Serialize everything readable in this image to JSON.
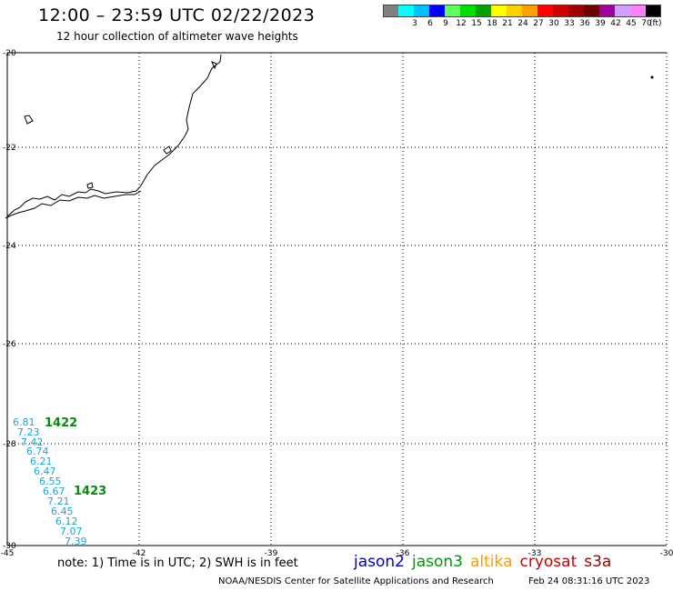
{
  "header": {
    "title": "12:00 – 23:59 UTC 02/22/2023",
    "subtitle": "12 hour collection of altimeter wave heights"
  },
  "legend": {
    "unit": "(ft)",
    "bins": [
      {
        "label": "",
        "color": "#808080"
      },
      {
        "label": "3",
        "color": "#00ffff"
      },
      {
        "label": "6",
        "color": "#00c0ff"
      },
      {
        "label": "9",
        "color": "#0000ff"
      },
      {
        "label": "12",
        "color": "#60ff60"
      },
      {
        "label": "15",
        "color": "#00e000"
      },
      {
        "label": "18",
        "color": "#00a000"
      },
      {
        "label": "21",
        "color": "#ffff00"
      },
      {
        "label": "24",
        "color": "#ffd000"
      },
      {
        "label": "27",
        "color": "#ffa000"
      },
      {
        "label": "30",
        "color": "#ff0000"
      },
      {
        "label": "33",
        "color": "#d00000"
      },
      {
        "label": "36",
        "color": "#a00000"
      },
      {
        "label": "39",
        "color": "#700000"
      },
      {
        "label": "42",
        "color": "#a000a0"
      },
      {
        "label": "45",
        "color": "#d0a0ff"
      },
      {
        "label": "70",
        "color": "#ff80ff"
      },
      {
        "label": "",
        "color": "#000000"
      }
    ]
  },
  "map": {
    "lat_labels": [
      "-20",
      "-22",
      "-24",
      "-26",
      "-28",
      "-30"
    ],
    "lon_labels": [
      "-45",
      "-42",
      "-39",
      "-36",
      "-33",
      "-30"
    ],
    "swh_readings": [
      "6.81",
      "7.23",
      "7.42",
      "6.74",
      "6.21",
      "6.47",
      "6.55",
      "6.67",
      "7.21",
      "6.45",
      "6.12",
      "7.07",
      "7.39"
    ],
    "pass_times": [
      "1422",
      "1423"
    ]
  },
  "footer": {
    "note": "note: 1) Time is in UTC; 2) SWH is in feet",
    "satellites": [
      {
        "name": "jason2",
        "color": "#0000cc"
      },
      {
        "name": "jason3",
        "color": "#009900"
      },
      {
        "name": "altika",
        "color": "#ff9900"
      },
      {
        "name": "cryosat",
        "color": "#cc0000"
      },
      {
        "name": "s3a",
        "color": "#990000"
      }
    ],
    "credit": "NOAA/NESDIS Center for Satellite Applications and Research",
    "timestamp": "Feb 24 08:31:16 UTC 2023"
  }
}
